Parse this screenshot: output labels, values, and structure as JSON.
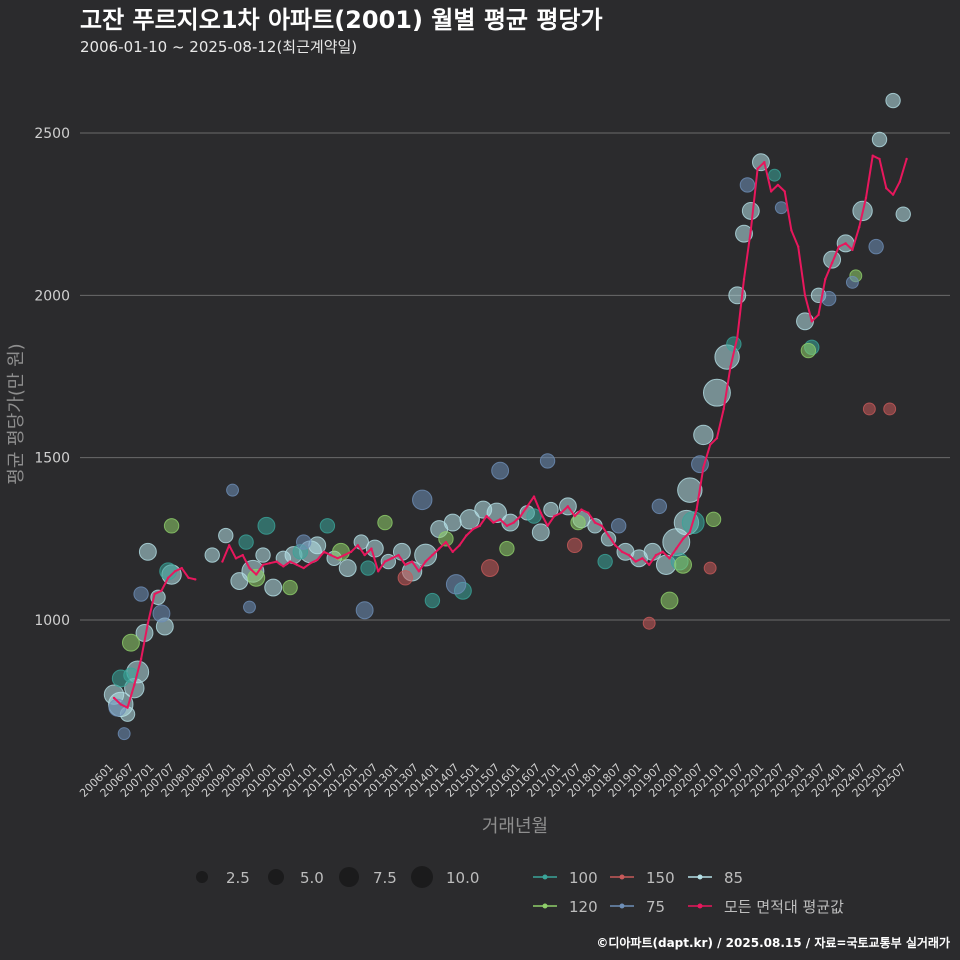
{
  "title": "고잔 푸르지오1차 아파트(2001) 월별 평균 평당가",
  "subtitle": "2006-01-10 ~ 2025-08-12(최근계약일)",
  "caption": "©디아파트(dapt.kr) / 2025.08.15 / 자료=국토교통부 실거래가",
  "colors": {
    "background": "#2b2b2d",
    "grid": "#6b6b6b",
    "avg_line": "#e8175d",
    "size_100": "#3aa59a",
    "size_150": "#c85a5a",
    "size_85": "#b5e0e6",
    "size_120": "#8fcf6a",
    "size_75": "#6e8fb8"
  },
  "chart_data": {
    "type": "scatter",
    "title": "고잔 푸르지오1차 아파트(2001) 월별 평균 평당가",
    "xlabel": "거래년월",
    "ylabel": "평균 평당가(만 원)",
    "x_range": [
      "2006-01",
      "2025-08"
    ],
    "ylim": [
      730,
      2650
    ],
    "yticks": [
      1000,
      1500,
      2000,
      2500
    ],
    "xticks": [
      "200601",
      "200607",
      "200701",
      "200707",
      "200801",
      "200807",
      "200901",
      "200907",
      "201001",
      "201007",
      "201101",
      "201107",
      "201201",
      "201207",
      "201301",
      "201307",
      "201401",
      "201407",
      "201501",
      "201507",
      "201601",
      "201607",
      "201701",
      "201707",
      "201801",
      "201807",
      "201901",
      "201907",
      "202001",
      "202007",
      "202101",
      "202107",
      "202201",
      "202207",
      "202301",
      "202307",
      "202401",
      "202407",
      "202501",
      "202507"
    ],
    "grid": "horizontal",
    "legend": {
      "size_title": "",
      "size_entries": [
        "2.5",
        "5.0",
        "7.5",
        "10.0"
      ],
      "size_values": [
        2.5,
        5.0,
        7.5,
        10.0
      ],
      "series_entries": [
        "100",
        "150",
        "85",
        "120",
        "75",
        "모든 면적대 평균값"
      ],
      "placement": "bottom"
    },
    "series": [
      {
        "name": "모든 면적대 평균값",
        "type": "line",
        "points": [
          [
            "2006-01",
            760
          ],
          [
            "2006-03",
            740
          ],
          [
            "2006-05",
            730
          ],
          [
            "2006-07",
            800
          ],
          [
            "2006-09",
            880
          ],
          [
            "2006-11",
            990
          ],
          [
            "2007-01",
            1080
          ],
          [
            "2007-03",
            1090
          ],
          [
            "2007-05",
            1130
          ],
          [
            "2007-07",
            1150
          ],
          [
            "2007-09",
            1160
          ],
          [
            "2007-11",
            1130
          ],
          [
            "2008-01",
            1125
          ],
          [
            "2008-09",
            1180
          ],
          [
            "2008-11",
            1230
          ],
          [
            "2009-01",
            1190
          ],
          [
            "2009-03",
            1200
          ],
          [
            "2009-05",
            1160
          ],
          [
            "2009-07",
            1140
          ],
          [
            "2009-09",
            1170
          ],
          [
            "2009-11",
            1175
          ],
          [
            "2010-01",
            1180
          ],
          [
            "2010-03",
            1165
          ],
          [
            "2010-05",
            1180
          ],
          [
            "2010-07",
            1170
          ],
          [
            "2010-09",
            1160
          ],
          [
            "2010-11",
            1175
          ],
          [
            "2011-01",
            1185
          ],
          [
            "2011-03",
            1210
          ],
          [
            "2011-05",
            1200
          ],
          [
            "2011-07",
            1190
          ],
          [
            "2011-09",
            1200
          ],
          [
            "2011-11",
            1210
          ],
          [
            "2012-01",
            1230
          ],
          [
            "2012-03",
            1200
          ],
          [
            "2012-05",
            1220
          ],
          [
            "2012-07",
            1150
          ],
          [
            "2012-09",
            1180
          ],
          [
            "2012-11",
            1190
          ],
          [
            "2013-01",
            1200
          ],
          [
            "2013-03",
            1170
          ],
          [
            "2013-05",
            1180
          ],
          [
            "2013-07",
            1150
          ],
          [
            "2013-09",
            1180
          ],
          [
            "2013-11",
            1200
          ],
          [
            "2014-01",
            1220
          ],
          [
            "2014-03",
            1240
          ],
          [
            "2014-05",
            1210
          ],
          [
            "2014-07",
            1230
          ],
          [
            "2014-09",
            1260
          ],
          [
            "2014-11",
            1280
          ],
          [
            "2015-01",
            1290
          ],
          [
            "2015-03",
            1320
          ],
          [
            "2015-05",
            1300
          ],
          [
            "2015-07",
            1310
          ],
          [
            "2015-09",
            1290
          ],
          [
            "2015-11",
            1300
          ],
          [
            "2016-01",
            1320
          ],
          [
            "2016-03",
            1350
          ],
          [
            "2016-05",
            1380
          ],
          [
            "2016-07",
            1330
          ],
          [
            "2016-09",
            1290
          ],
          [
            "2016-11",
            1320
          ],
          [
            "2017-01",
            1330
          ],
          [
            "2017-03",
            1350
          ],
          [
            "2017-05",
            1320
          ],
          [
            "2017-07",
            1340
          ],
          [
            "2017-09",
            1330
          ],
          [
            "2017-11",
            1300
          ],
          [
            "2018-01",
            1290
          ],
          [
            "2018-03",
            1260
          ],
          [
            "2018-05",
            1230
          ],
          [
            "2018-07",
            1210
          ],
          [
            "2018-09",
            1200
          ],
          [
            "2018-11",
            1180
          ],
          [
            "2019-01",
            1190
          ],
          [
            "2019-03",
            1170
          ],
          [
            "2019-05",
            1200
          ],
          [
            "2019-07",
            1210
          ],
          [
            "2019-09",
            1190
          ],
          [
            "2019-11",
            1220
          ],
          [
            "2020-01",
            1250
          ],
          [
            "2020-03",
            1270
          ],
          [
            "2020-05",
            1340
          ],
          [
            "2020-07",
            1470
          ],
          [
            "2020-09",
            1540
          ],
          [
            "2020-11",
            1560
          ],
          [
            "2021-01",
            1650
          ],
          [
            "2021-03",
            1780
          ],
          [
            "2021-05",
            1870
          ],
          [
            "2021-07",
            2050
          ],
          [
            "2021-09",
            2200
          ],
          [
            "2021-11",
            2390
          ],
          [
            "2022-01",
            2410
          ],
          [
            "2022-03",
            2320
          ],
          [
            "2022-05",
            2340
          ],
          [
            "2022-07",
            2320
          ],
          [
            "2022-09",
            2200
          ],
          [
            "2022-11",
            2150
          ],
          [
            "2023-01",
            2000
          ],
          [
            "2023-03",
            1920
          ],
          [
            "2023-05",
            1940
          ],
          [
            "2023-07",
            2050
          ],
          [
            "2023-09",
            2100
          ],
          [
            "2023-11",
            2150
          ],
          [
            "2024-01",
            2160
          ],
          [
            "2024-03",
            2140
          ],
          [
            "2024-05",
            2210
          ],
          [
            "2024-07",
            2300
          ],
          [
            "2024-09",
            2430
          ],
          [
            "2024-11",
            2420
          ],
          [
            "2025-01",
            2330
          ],
          [
            "2025-03",
            2310
          ],
          [
            "2025-05",
            2350
          ],
          [
            "2025-07",
            2420
          ]
        ]
      },
      {
        "name": "85",
        "type": "bubble",
        "points": [
          [
            "2006-01",
            770,
            6
          ],
          [
            "2006-03",
            740,
            8
          ],
          [
            "2006-05",
            710,
            4
          ],
          [
            "2006-07",
            790,
            6
          ],
          [
            "2006-08",
            840,
            7
          ],
          [
            "2006-10",
            960,
            5
          ],
          [
            "2006-11",
            1210,
            5
          ],
          [
            "2007-02",
            1070,
            4
          ],
          [
            "2007-04",
            980,
            5
          ],
          [
            "2007-06",
            1140,
            6
          ],
          [
            "2008-06",
            1200,
            4
          ],
          [
            "2008-10",
            1260,
            4
          ],
          [
            "2009-02",
            1120,
            5
          ],
          [
            "2009-06",
            1150,
            7
          ],
          [
            "2009-09",
            1200,
            4
          ],
          [
            "2009-12",
            1100,
            5
          ],
          [
            "2010-03",
            1190,
            4
          ],
          [
            "2010-06",
            1200,
            5
          ],
          [
            "2010-11",
            1210,
            7
          ],
          [
            "2011-01",
            1230,
            5
          ],
          [
            "2011-06",
            1190,
            4
          ],
          [
            "2011-10",
            1160,
            5
          ],
          [
            "2012-02",
            1240,
            4
          ],
          [
            "2012-06",
            1220,
            5
          ],
          [
            "2012-10",
            1180,
            4
          ],
          [
            "2013-02",
            1210,
            5
          ],
          [
            "2013-05",
            1150,
            6
          ],
          [
            "2013-09",
            1200,
            7
          ],
          [
            "2014-01",
            1280,
            5
          ],
          [
            "2014-05",
            1300,
            5
          ],
          [
            "2014-10",
            1310,
            6
          ],
          [
            "2015-02",
            1340,
            5
          ],
          [
            "2015-06",
            1330,
            6
          ],
          [
            "2015-10",
            1300,
            5
          ],
          [
            "2016-03",
            1330,
            4
          ],
          [
            "2016-07",
            1270,
            5
          ],
          [
            "2016-10",
            1340,
            4
          ],
          [
            "2017-03",
            1350,
            5
          ],
          [
            "2017-07",
            1310,
            5
          ],
          [
            "2017-11",
            1290,
            4
          ],
          [
            "2018-03",
            1250,
            4
          ],
          [
            "2018-08",
            1210,
            5
          ],
          [
            "2018-12",
            1190,
            5
          ],
          [
            "2019-04",
            1210,
            5
          ],
          [
            "2019-08",
            1170,
            6
          ],
          [
            "2019-11",
            1240,
            9
          ],
          [
            "2020-02",
            1300,
            8
          ],
          [
            "2020-03",
            1400,
            8
          ],
          [
            "2020-07",
            1570,
            6
          ],
          [
            "2020-11",
            1700,
            9
          ],
          [
            "2021-02",
            1810,
            8
          ],
          [
            "2021-05",
            2000,
            5
          ],
          [
            "2021-07",
            2190,
            5
          ],
          [
            "2021-09",
            2260,
            5
          ],
          [
            "2021-12",
            2410,
            5
          ],
          [
            "2023-01",
            1920,
            5
          ],
          [
            "2023-05",
            2000,
            4
          ],
          [
            "2023-09",
            2110,
            5
          ],
          [
            "2024-01",
            2160,
            5
          ],
          [
            "2024-06",
            2260,
            6
          ],
          [
            "2024-11",
            2480,
            4
          ],
          [
            "2025-03",
            2600,
            4
          ],
          [
            "2025-06",
            2250,
            4
          ]
        ]
      },
      {
        "name": "100",
        "type": "bubble",
        "points": [
          [
            "2006-03",
            820,
            5
          ],
          [
            "2006-06",
            830,
            4
          ],
          [
            "2007-05",
            1150,
            5
          ],
          [
            "2009-04",
            1240,
            4
          ],
          [
            "2009-10",
            1290,
            5
          ],
          [
            "2010-08",
            1210,
            4
          ],
          [
            "2011-04",
            1290,
            4
          ],
          [
            "2012-04",
            1160,
            4
          ],
          [
            "2013-11",
            1060,
            4
          ],
          [
            "2014-08",
            1090,
            5
          ],
          [
            "2016-05",
            1320,
            4
          ],
          [
            "2018-02",
            1180,
            4
          ],
          [
            "2019-12",
            1180,
            5
          ],
          [
            "2020-04",
            1300,
            7
          ],
          [
            "2021-04",
            1850,
            4
          ],
          [
            "2022-04",
            2370,
            3
          ],
          [
            "2023-03",
            1840,
            4
          ]
        ]
      },
      {
        "name": "120",
        "type": "bubble",
        "points": [
          [
            "2006-06",
            930,
            5
          ],
          [
            "2007-06",
            1290,
            4
          ],
          [
            "2009-07",
            1130,
            5
          ],
          [
            "2010-05",
            1100,
            4
          ],
          [
            "2011-08",
            1210,
            5
          ],
          [
            "2012-09",
            1300,
            4
          ],
          [
            "2014-03",
            1250,
            4
          ],
          [
            "2015-09",
            1220,
            4
          ],
          [
            "2017-06",
            1300,
            4
          ],
          [
            "2019-09",
            1060,
            5
          ],
          [
            "2020-01",
            1170,
            5
          ],
          [
            "2020-10",
            1310,
            4
          ],
          [
            "2023-02",
            1830,
            4
          ],
          [
            "2024-04",
            2060,
            3
          ]
        ]
      },
      {
        "name": "150",
        "type": "bubble",
        "points": [
          [
            "2013-03",
            1130,
            4
          ],
          [
            "2015-04",
            1160,
            5
          ],
          [
            "2017-05",
            1230,
            4
          ],
          [
            "2019-03",
            990,
            3
          ],
          [
            "2020-09",
            1160,
            3
          ],
          [
            "2024-08",
            1650,
            3
          ],
          [
            "2025-02",
            1650,
            3
          ]
        ]
      },
      {
        "name": "75",
        "type": "bubble",
        "points": [
          [
            "2006-02",
            730,
            5
          ],
          [
            "2006-04",
            650,
            3
          ],
          [
            "2006-09",
            1080,
            4
          ],
          [
            "2007-03",
            1020,
            5
          ],
          [
            "2008-12",
            1400,
            3
          ],
          [
            "2009-05",
            1040,
            3
          ],
          [
            "2010-09",
            1240,
            4
          ],
          [
            "2012-03",
            1030,
            5
          ],
          [
            "2013-08",
            1370,
            6
          ],
          [
            "2014-06",
            1110,
            6
          ],
          [
            "2015-07",
            1460,
            5
          ],
          [
            "2016-09",
            1490,
            4
          ],
          [
            "2018-06",
            1290,
            4
          ],
          [
            "2019-06",
            1350,
            4
          ],
          [
            "2020-06",
            1480,
            5
          ],
          [
            "2021-08",
            2340,
            4
          ],
          [
            "2022-06",
            2270,
            3
          ],
          [
            "2023-08",
            1990,
            4
          ],
          [
            "2024-03",
            2040,
            3
          ],
          [
            "2024-10",
            2150,
            4
          ]
        ]
      }
    ]
  }
}
